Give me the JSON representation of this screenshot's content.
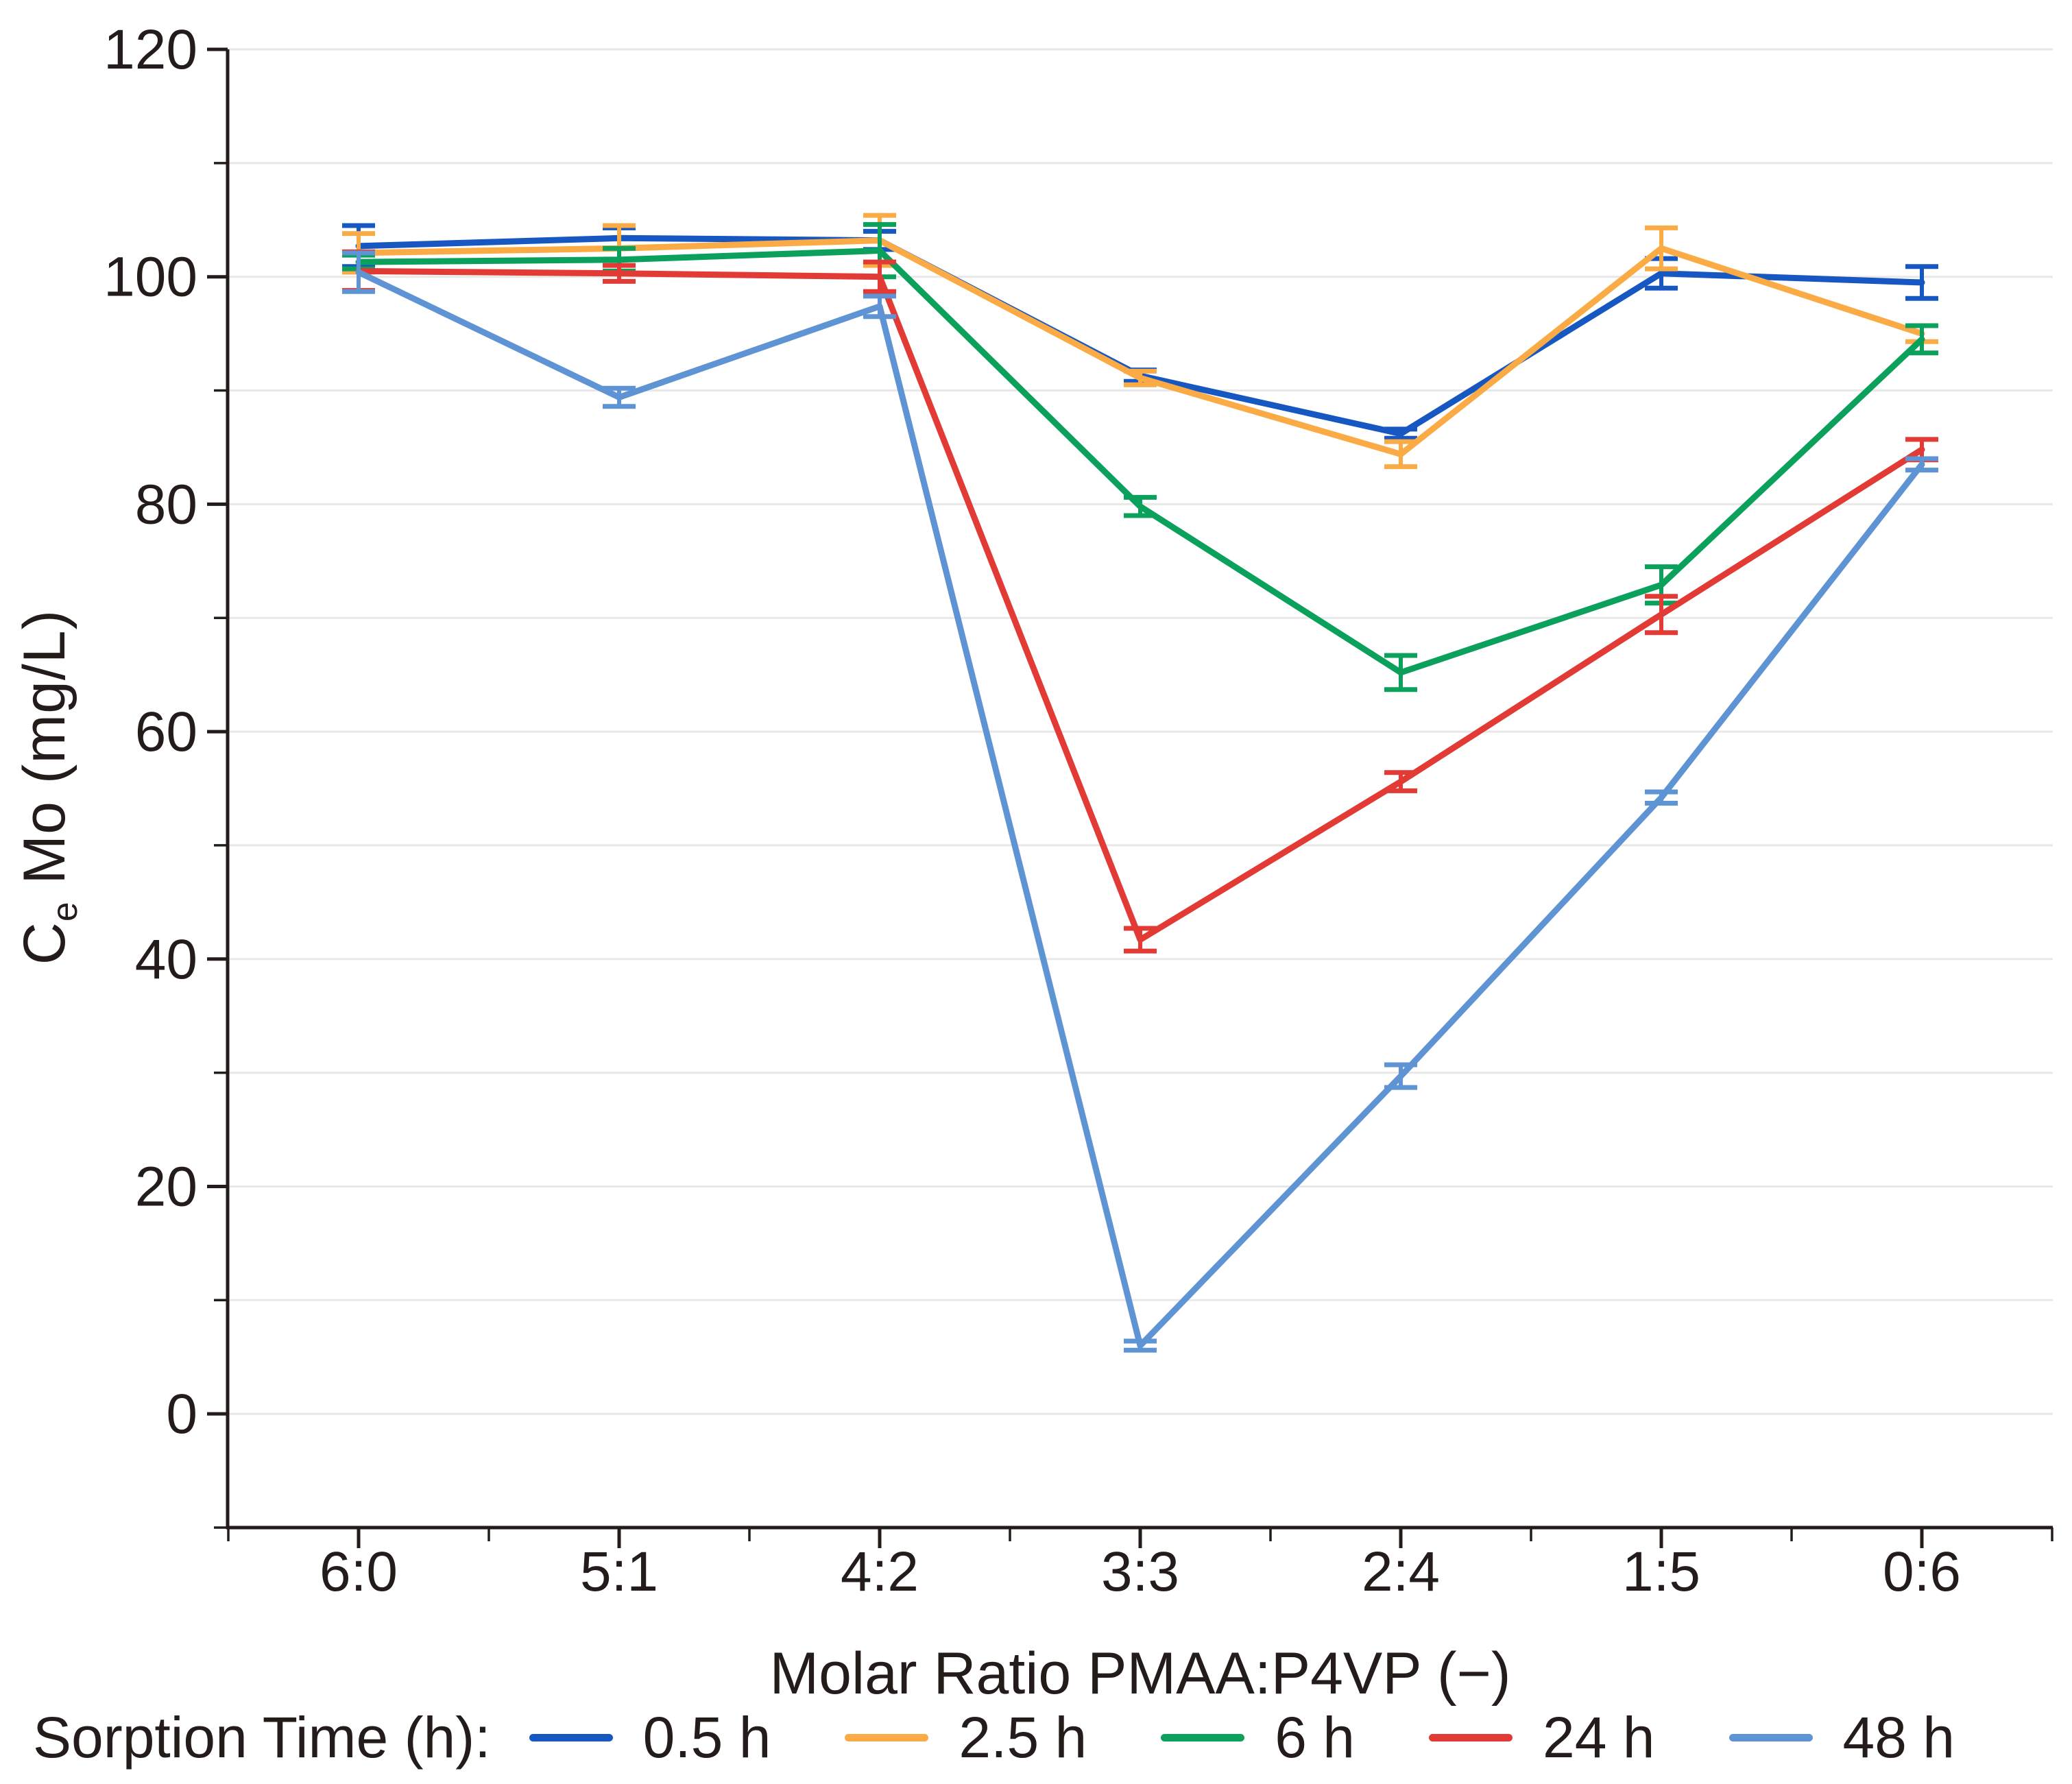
{
  "chart_data": {
    "type": "line",
    "title": "",
    "xlabel": "Molar Ratio PMAA:P4VP (−)",
    "ylabel": {
      "main": "C",
      "sub": "e",
      "rest": " Mo (mg/L)"
    },
    "categories": [
      "6:0",
      "5:1",
      "4:2",
      "3:3",
      "2:4",
      "1:5",
      "0:6"
    ],
    "y_axis": {
      "min": -10,
      "max": 120,
      "major_ticks": [
        0,
        20,
        40,
        60,
        80,
        100,
        120
      ],
      "minor_ticks": [
        -10,
        10,
        30,
        50,
        70,
        90,
        110
      ],
      "gridlines": [
        0,
        10,
        20,
        30,
        40,
        50,
        60,
        70,
        80,
        90,
        100,
        110,
        120
      ]
    },
    "grid": true,
    "legend_position": "bottom",
    "legend": {
      "title": "Sorption Time (h):"
    },
    "series": [
      {
        "name": "0.5 h",
        "color": "#1657c2",
        "values": [
          102.7,
          103.4,
          103.2,
          91.3,
          86.2,
          100.3,
          99.5
        ],
        "errors": [
          1.8,
          0.9,
          0.8,
          0.5,
          0.4,
          1.3,
          1.4
        ]
      },
      {
        "name": "2.5 h",
        "color": "#fbab45",
        "values": [
          102.1,
          102.5,
          103.2,
          91.1,
          84.4,
          102.5,
          95.0
        ],
        "errors": [
          1.7,
          2.0,
          2.2,
          0.6,
          1.1,
          1.8,
          0.7
        ]
      },
      {
        "name": "6 h",
        "color": "#0ba15c",
        "values": [
          101.3,
          101.5,
          102.3,
          79.8,
          65.2,
          72.9,
          94.5
        ],
        "errors": [
          0.6,
          1.0,
          2.3,
          0.8,
          1.5,
          1.6,
          1.2
        ]
      },
      {
        "name": "24 h",
        "color": "#e23a35",
        "values": [
          100.5,
          100.3,
          100.0,
          41.7,
          55.6,
          70.3,
          84.8
        ],
        "errors": [
          1.7,
          0.7,
          1.3,
          1.0,
          0.8,
          1.6,
          0.9
        ]
      },
      {
        "name": "48 h",
        "color": "#5e93d4",
        "values": [
          100.4,
          89.4,
          97.4,
          6.0,
          29.7,
          54.2,
          83.5
        ],
        "errors": [
          1.7,
          0.8,
          0.9,
          0.4,
          1.0,
          0.5,
          0.5
        ]
      }
    ]
  },
  "colors": {
    "axis_text": "#241b1b",
    "gridline": "#e8e8e8",
    "background": "#ffffff"
  }
}
